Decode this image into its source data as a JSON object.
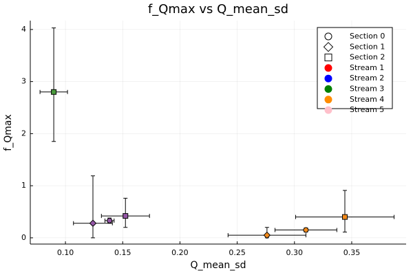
{
  "chart_data": {
    "type": "scatter",
    "title": "f_Qmax vs Q_mean_sd",
    "x_label": "Q_mean_sd",
    "y_label": "f_Qmax",
    "xlim": [
      0.0693,
      0.3975
    ],
    "ylim": [
      -0.12,
      4.17
    ],
    "xticks": [
      {
        "value": 0.1,
        "label": "0.10"
      },
      0.15,
      {
        "value": 0.2,
        "label": "0.20"
      },
      0.25,
      {
        "value": 0.3,
        "label": "0.30"
      },
      0.35
    ],
    "yticks": [
      0,
      1,
      2,
      3,
      4
    ],
    "grid": true,
    "legend_position": "top-right",
    "legend": [
      {
        "name": "Section 0",
        "marker": "circle",
        "color": "#ffffff"
      },
      {
        "name": "Section 1",
        "marker": "diamond",
        "color": "#ffffff"
      },
      {
        "name": "Section 2",
        "marker": "square",
        "color": "#ffffff"
      },
      {
        "name": "Stream 1",
        "marker": "circle",
        "color": "#ff0000"
      },
      {
        "name": "Stream 2",
        "marker": "circle",
        "color": "#0000ff"
      },
      {
        "name": "Stream 3",
        "marker": "circle",
        "color": "#008000"
      },
      {
        "name": "Stream 4",
        "marker": "circle",
        "color": "#ff8c00"
      },
      {
        "name": "Stream 5",
        "marker": "circle",
        "color": "#ffc0cb"
      }
    ],
    "points": [
      {
        "x": 0.0898,
        "y": 2.8,
        "xerr": 0.012,
        "yerr": [
          0.95,
          1.23
        ],
        "marker": "square",
        "color": "#4a9a3c"
      },
      {
        "x": 0.124,
        "y": 0.28,
        "xerr": 0.017,
        "yerr": [
          0.28,
          0.91
        ],
        "marker": "diamond",
        "color": "#9457a6"
      },
      {
        "x": 0.1385,
        "y": 0.33,
        "xerr": 0.004,
        "yerr": [
          0.05,
          0.05
        ],
        "marker": "circle",
        "color": "#9457a6"
      },
      {
        "x": 0.1524,
        "y": 0.42,
        "xerr": 0.021,
        "yerr": [
          0.22,
          0.34
        ],
        "marker": "square",
        "color": "#9457a6"
      },
      {
        "x": 0.276,
        "y": 0.05,
        "xerr": 0.034,
        "yerr": [
          0.05,
          0.15
        ],
        "marker": "diamond",
        "color": "#f28a1b"
      },
      {
        "x": 0.31,
        "y": 0.15,
        "xerr": 0.027,
        "yerr": [
          0.04,
          0.04
        ],
        "marker": "circle",
        "color": "#f28a1b"
      },
      {
        "x": 0.344,
        "y": 0.4,
        "xerr": 0.043,
        "yerr": [
          0.29,
          0.51
        ],
        "marker": "square",
        "color": "#f28a1b"
      }
    ]
  }
}
